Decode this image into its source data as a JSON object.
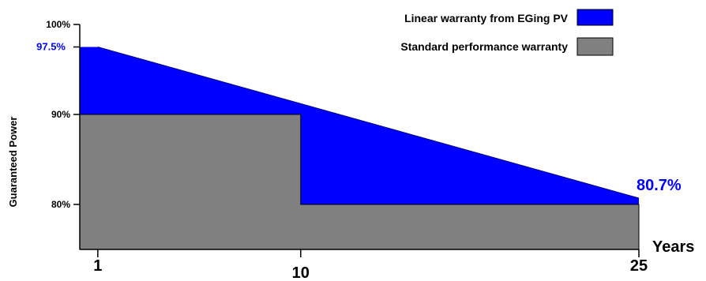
{
  "chart_data": {
    "type": "area",
    "title": "",
    "xlabel": "Years",
    "ylabel": "Guaranteed Power",
    "x_ticks": [
      "1",
      "10",
      "25"
    ],
    "y_ticks": [
      "100%",
      "90%",
      "80%"
    ],
    "x_range": [
      0.2,
      25
    ],
    "y_range": [
      75,
      100
    ],
    "series": [
      {
        "name": "Linear warranty from EGing PV",
        "color": "#0000ff",
        "points": [
          [
            1,
            97.5
          ],
          [
            25,
            80.7
          ]
        ]
      },
      {
        "name": "Standard performance warranty",
        "color": "#808080",
        "points": [
          [
            1,
            90
          ],
          [
            10,
            90
          ],
          [
            10,
            80
          ],
          [
            25,
            80
          ]
        ]
      }
    ],
    "annotations": {
      "start_value": "97.5%",
      "end_value": "80.7%"
    },
    "legend_position": "top-right",
    "grid": false
  }
}
